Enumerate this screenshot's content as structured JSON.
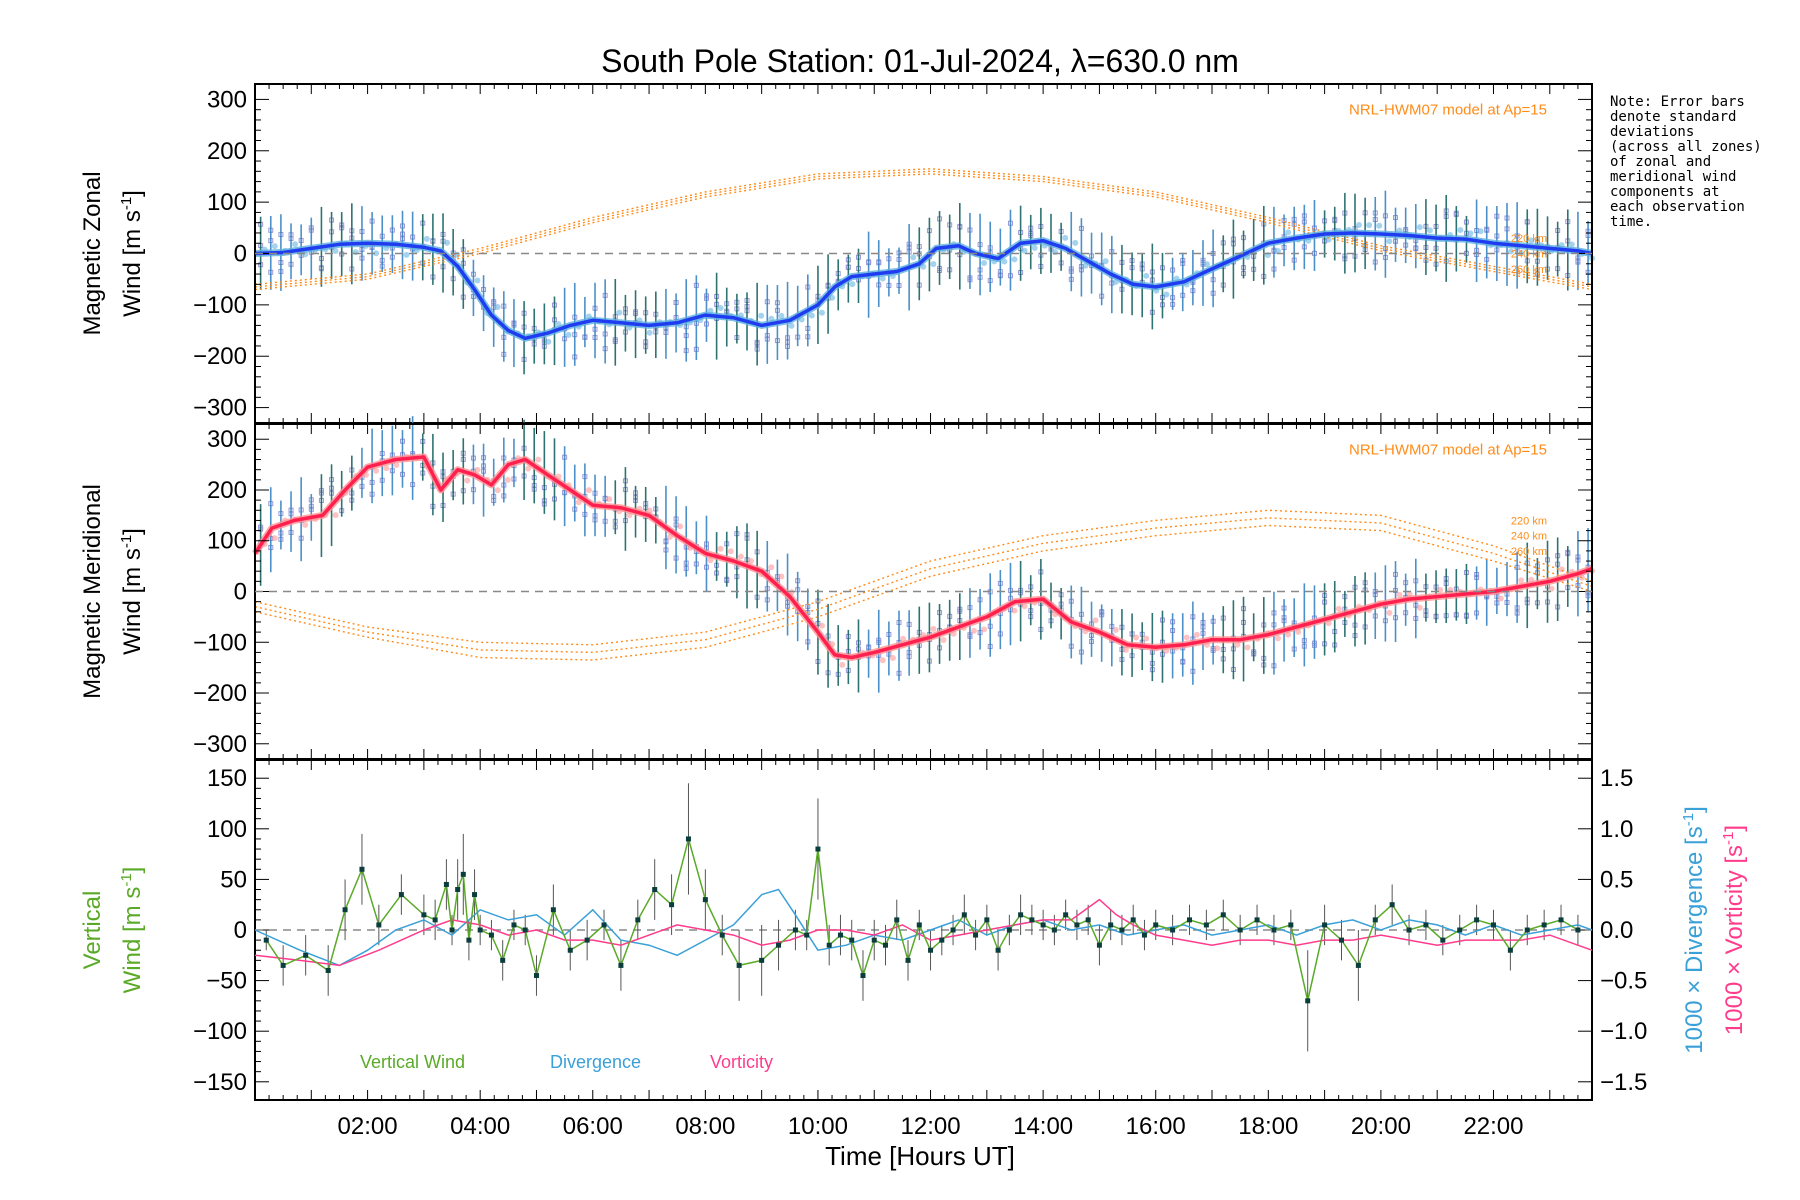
{
  "chart_data": {
    "type": "line",
    "title": "South Pole Station: 01-Jul-2024, λ=630.0 nm",
    "xlabel": "Time [Hours UT]",
    "xlim": [
      0.0,
      23.75
    ],
    "x_ticks": [
      2,
      4,
      6,
      8,
      10,
      12,
      14,
      16,
      18,
      20,
      22
    ],
    "x_tick_labels": [
      "02:00",
      "04:00",
      "06:00",
      "08:00",
      "10:00",
      "12:00",
      "14:00",
      "16:00",
      "18:00",
      "20:00",
      "22:00"
    ],
    "note": [
      "Note: Error bars",
      "denote standard",
      "deviations",
      "(across all zones)",
      "of zonal and",
      "meridional wind",
      "components at",
      "each observation",
      "time."
    ],
    "model_label": "NRL-HWM07 model at Ap=15",
    "altitudes": [
      "220 km",
      "240 km",
      "260 km"
    ],
    "colors": {
      "zonal": "#1f3cf0",
      "zonal_light": "#5aaee0",
      "meridional": "#ff2050",
      "meridional_light": "#ff9090",
      "vertical": "#5aaa28",
      "divergence": "#3aa0d8",
      "vorticity": "#ff3c8c",
      "model": "#ff8c1a",
      "scatter": "#9a9ad8",
      "errorbar": "#0a5a5a",
      "dash": "#888888"
    },
    "panels": [
      {
        "name": "zonal",
        "ylabel_line1": "Magnetic Zonal",
        "ylabel_line2": "Wind [m s-1]",
        "ylabel_tex": [
          "Wind [m s",
          "-1",
          "]"
        ],
        "ylim": [
          -330,
          330
        ],
        "y_ticks": [
          -300,
          -200,
          -100,
          0,
          100,
          200,
          300
        ],
        "y_tick_labels": [
          "−300",
          "−200",
          "−100",
          "0",
          "100",
          "200",
          "300"
        ],
        "mean_line": {
          "x": [
            0.0,
            0.5,
            1.0,
            1.5,
            2.0,
            2.5,
            3.0,
            3.3,
            3.6,
            3.9,
            4.2,
            4.5,
            4.8,
            5.2,
            5.6,
            6.0,
            6.5,
            7.0,
            7.5,
            8.0,
            8.5,
            9.0,
            9.5,
            10.0,
            10.3,
            10.6,
            11.0,
            11.4,
            11.8,
            12.1,
            12.5,
            12.8,
            13.2,
            13.6,
            14.0,
            14.4,
            14.8,
            15.2,
            15.6,
            16.0,
            16.5,
            17.0,
            17.5,
            18.0,
            18.5,
            19.0,
            19.5,
            20.0,
            20.5,
            21.0,
            21.5,
            22.0,
            22.5,
            23.0,
            23.5,
            23.75
          ],
          "y": [
            0,
            2,
            10,
            18,
            20,
            18,
            12,
            5,
            -25,
            -70,
            -120,
            -150,
            -165,
            -155,
            -140,
            -130,
            -135,
            -140,
            -135,
            -120,
            -125,
            -140,
            -130,
            -100,
            -65,
            -45,
            -40,
            -35,
            -20,
            10,
            15,
            0,
            -10,
            20,
            25,
            10,
            -15,
            -40,
            -60,
            -65,
            -55,
            -30,
            -5,
            20,
            30,
            38,
            40,
            38,
            35,
            30,
            28,
            20,
            15,
            10,
            5,
            0
          ]
        },
        "models": [
          {
            "altitude": "220 km",
            "x": [
              0,
              2,
              4,
              6,
              8,
              10,
              12,
              14,
              16,
              18,
              20,
              22,
              23.75
            ],
            "y": [
              -60,
              -40,
              10,
              70,
              120,
              155,
              165,
              150,
              120,
              70,
              15,
              -25,
              -60
            ]
          },
          {
            "altitude": "240 km",
            "x": [
              0,
              2,
              4,
              6,
              8,
              10,
              12,
              14,
              16,
              18,
              20,
              22,
              23.75
            ],
            "y": [
              -65,
              -45,
              5,
              65,
              115,
              150,
              160,
              145,
              115,
              65,
              10,
              -30,
              -65
            ]
          },
          {
            "altitude": "260 km",
            "x": [
              0,
              2,
              4,
              6,
              8,
              10,
              12,
              14,
              16,
              18,
              20,
              22,
              23.75
            ],
            "y": [
              -70,
              -50,
              0,
              60,
              110,
              145,
              155,
              140,
              110,
              60,
              5,
              -35,
              -70
            ]
          }
        ],
        "model_label_y": 280,
        "alt_label_ys": [
          30,
          0,
          -30
        ]
      },
      {
        "name": "meridional",
        "ylabel_line1": "Magnetic Meridional",
        "ylabel_line2": "Wind [m s-1]",
        "ylabel_tex": [
          "Wind [m s",
          "-1",
          "]"
        ],
        "ylim": [
          -330,
          330
        ],
        "y_ticks": [
          -300,
          -200,
          -100,
          0,
          100,
          200,
          300
        ],
        "y_tick_labels": [
          "−300",
          "−200",
          "−100",
          "0",
          "100",
          "200",
          "300"
        ],
        "mean_line": {
          "x": [
            0.0,
            0.3,
            0.7,
            1.2,
            1.6,
            2.0,
            2.5,
            3.0,
            3.3,
            3.6,
            3.9,
            4.2,
            4.5,
            4.8,
            5.2,
            5.6,
            6.0,
            6.5,
            7.0,
            7.5,
            8.0,
            8.5,
            9.0,
            9.5,
            10.0,
            10.3,
            10.6,
            11.0,
            11.5,
            12.0,
            12.5,
            13.0,
            13.5,
            14.0,
            14.5,
            15.0,
            15.5,
            16.0,
            16.5,
            17.0,
            17.5,
            18.0,
            18.5,
            19.0,
            19.5,
            20.0,
            20.5,
            21.0,
            21.5,
            22.0,
            22.5,
            23.0,
            23.5,
            23.75
          ],
          "y": [
            75,
            125,
            140,
            150,
            200,
            245,
            260,
            265,
            200,
            240,
            230,
            210,
            250,
            260,
            230,
            200,
            170,
            165,
            150,
            110,
            75,
            60,
            40,
            -10,
            -80,
            -125,
            -130,
            -120,
            -105,
            -90,
            -70,
            -50,
            -20,
            -15,
            -60,
            -80,
            -105,
            -110,
            -105,
            -95,
            -95,
            -85,
            -70,
            -55,
            -40,
            -25,
            -15,
            -10,
            -5,
            0,
            10,
            20,
            35,
            45
          ]
        },
        "models": [
          {
            "altitude": "220 km",
            "x": [
              0,
              2,
              4,
              6,
              8,
              10,
              12,
              14,
              16,
              18,
              20,
              22,
              23.75
            ],
            "y": [
              -20,
              -70,
              -100,
              -105,
              -80,
              -20,
              60,
              110,
              140,
              160,
              150,
              90,
              20
            ]
          },
          {
            "altitude": "240 km",
            "x": [
              0,
              2,
              4,
              6,
              8,
              10,
              12,
              14,
              16,
              18,
              20,
              22,
              23.75
            ],
            "y": [
              -30,
              -80,
              -115,
              -120,
              -95,
              -35,
              45,
              95,
              125,
              145,
              135,
              75,
              10
            ]
          },
          {
            "altitude": "260 km",
            "x": [
              0,
              2,
              4,
              6,
              8,
              10,
              12,
              14,
              16,
              18,
              20,
              22,
              23.75
            ],
            "y": [
              -40,
              -90,
              -130,
              -135,
              -110,
              -50,
              30,
              80,
              110,
              130,
              120,
              60,
              0
            ]
          }
        ],
        "model_label_y": 280,
        "alt_label_ys": [
          140,
          110,
          80
        ]
      }
    ],
    "vertical": {
      "ylabel_line1": "Vertical",
      "ylabel_line2": "Wind [m s-1]",
      "ylabel_tex": [
        "Wind [m s",
        "-1",
        "]"
      ],
      "ylim": [
        -168,
        168
      ],
      "y_ticks": [
        -150,
        -100,
        -50,
        0,
        50,
        100,
        150
      ],
      "y_tick_labels": [
        "−150",
        "−100",
        "−50",
        "0",
        "50",
        "100",
        "150"
      ],
      "right_ylim": [
        -1.68,
        1.68
      ],
      "right_ticks": [
        -1.5,
        -1.0,
        -0.5,
        0.0,
        0.5,
        1.0,
        1.5
      ],
      "right_tick_labels": [
        "−1.5",
        "−1.0",
        "−0.5",
        "0.0",
        "0.5",
        "1.0",
        "1.5"
      ],
      "right_label_div": [
        "1000 × Divergence [s",
        "-1",
        "]"
      ],
      "right_label_vort": [
        "1000 × Vorticity [s",
        "-1",
        "]"
      ],
      "legend": [
        "Vertical Wind",
        "Divergence",
        "Vorticity"
      ],
      "vertical_wind": {
        "x": [
          0.2,
          0.5,
          0.9,
          1.3,
          1.6,
          1.9,
          2.2,
          2.6,
          3.0,
          3.2,
          3.4,
          3.5,
          3.6,
          3.7,
          3.8,
          3.9,
          4.0,
          4.2,
          4.4,
          4.6,
          4.8,
          5.0,
          5.3,
          5.6,
          5.9,
          6.2,
          6.5,
          6.8,
          7.1,
          7.4,
          7.7,
          8.0,
          8.3,
          8.6,
          9.0,
          9.3,
          9.6,
          9.8,
          10.0,
          10.2,
          10.4,
          10.6,
          10.8,
          11.0,
          11.2,
          11.4,
          11.6,
          11.8,
          12.0,
          12.2,
          12.4,
          12.6,
          12.8,
          13.0,
          13.2,
          13.4,
          13.6,
          13.8,
          14.0,
          14.2,
          14.4,
          14.6,
          14.8,
          15.0,
          15.2,
          15.4,
          15.6,
          15.8,
          16.0,
          16.3,
          16.6,
          16.9,
          17.2,
          17.5,
          17.8,
          18.1,
          18.4,
          18.7,
          19.0,
          19.3,
          19.6,
          19.9,
          20.2,
          20.5,
          20.8,
          21.1,
          21.4,
          21.7,
          22.0,
          22.3,
          22.6,
          22.9,
          23.2,
          23.5
        ],
        "y": [
          -10,
          -35,
          -25,
          -40,
          20,
          60,
          5,
          35,
          15,
          10,
          45,
          0,
          40,
          55,
          -10,
          35,
          0,
          -5,
          -30,
          5,
          0,
          -45,
          20,
          -20,
          -10,
          5,
          -35,
          10,
          40,
          25,
          90,
          30,
          -5,
          -35,
          -30,
          -15,
          0,
          -5,
          80,
          -15,
          -5,
          -10,
          -45,
          -10,
          -15,
          10,
          -30,
          5,
          -20,
          -10,
          0,
          15,
          -5,
          10,
          -20,
          0,
          15,
          10,
          5,
          0,
          15,
          5,
          10,
          -15,
          5,
          0,
          10,
          -5,
          5,
          0,
          10,
          5,
          15,
          0,
          10,
          0,
          5,
          -70,
          5,
          -10,
          -35,
          10,
          25,
          0,
          5,
          -10,
          0,
          10,
          5,
          -20,
          0,
          5,
          10,
          0
        ],
        "err": [
          10,
          20,
          20,
          25,
          30,
          35,
          20,
          20,
          20,
          20,
          25,
          15,
          30,
          40,
          20,
          25,
          15,
          15,
          20,
          15,
          15,
          20,
          25,
          20,
          20,
          15,
          25,
          20,
          30,
          30,
          55,
          30,
          20,
          35,
          35,
          25,
          20,
          15,
          50,
          20,
          20,
          20,
          25,
          20,
          20,
          20,
          20,
          15,
          20,
          15,
          15,
          20,
          15,
          15,
          20,
          15,
          20,
          15,
          15,
          15,
          15,
          15,
          15,
          20,
          15,
          15,
          15,
          15,
          15,
          15,
          15,
          15,
          15,
          15,
          15,
          15,
          15,
          50,
          20,
          20,
          35,
          15,
          20,
          15,
          15,
          15,
          15,
          15,
          15,
          20,
          15,
          15,
          15,
          15
        ]
      },
      "divergence": {
        "x": [
          0.0,
          0.8,
          1.5,
          2.0,
          2.5,
          3.0,
          3.5,
          4.0,
          4.5,
          5.0,
          5.5,
          6.0,
          6.5,
          7.0,
          7.5,
          8.0,
          8.5,
          9.0,
          9.3,
          9.6,
          10.0,
          10.5,
          11.0,
          11.5,
          12.0,
          12.5,
          13.0,
          13.5,
          14.0,
          14.5,
          15.0,
          15.5,
          16.0,
          16.5,
          17.0,
          17.5,
          18.0,
          18.5,
          19.0,
          19.5,
          20.0,
          20.5,
          21.0,
          21.5,
          22.0,
          22.5,
          23.0,
          23.5,
          23.75
        ],
        "y": [
          0.0,
          -0.2,
          -0.35,
          -0.2,
          0.0,
          0.1,
          -0.05,
          0.2,
          0.1,
          0.15,
          -0.05,
          0.2,
          -0.1,
          -0.15,
          -0.25,
          -0.1,
          0.05,
          0.35,
          0.4,
          0.15,
          -0.2,
          -0.15,
          -0.05,
          -0.1,
          0.0,
          0.1,
          -0.05,
          0.05,
          0.1,
          0.0,
          0.05,
          -0.05,
          0.0,
          0.05,
          -0.05,
          0.0,
          0.05,
          -0.05,
          0.05,
          0.1,
          0.0,
          0.1,
          0.05,
          -0.05,
          0.05,
          -0.05,
          0.0,
          0.05,
          0.0
        ]
      },
      "vorticity": {
        "x": [
          0.0,
          0.8,
          1.5,
          2.2,
          3.0,
          3.5,
          4.0,
          4.5,
          5.0,
          5.5,
          6.0,
          6.5,
          7.0,
          7.5,
          8.0,
          8.5,
          9.0,
          9.5,
          10.0,
          10.5,
          11.0,
          11.5,
          12.0,
          12.5,
          13.0,
          13.5,
          14.0,
          14.5,
          15.0,
          15.3,
          15.6,
          16.0,
          16.5,
          17.0,
          17.5,
          18.0,
          18.5,
          19.0,
          19.5,
          20.0,
          20.5,
          21.0,
          21.5,
          22.0,
          22.5,
          23.0,
          23.5,
          23.75
        ],
        "y": [
          -0.25,
          -0.3,
          -0.35,
          -0.2,
          0.0,
          0.1,
          0.05,
          -0.05,
          0.0,
          -0.1,
          -0.1,
          -0.15,
          -0.05,
          0.05,
          0.0,
          -0.05,
          -0.15,
          -0.1,
          0.0,
          0.0,
          -0.05,
          0.05,
          -0.1,
          -0.05,
          0.0,
          0.05,
          0.1,
          0.1,
          0.3,
          0.15,
          0.05,
          -0.05,
          -0.1,
          -0.15,
          -0.1,
          -0.1,
          -0.15,
          -0.1,
          -0.1,
          -0.05,
          -0.1,
          -0.15,
          -0.1,
          -0.1,
          -0.1,
          -0.05,
          -0.15,
          -0.2
        ]
      }
    }
  }
}
